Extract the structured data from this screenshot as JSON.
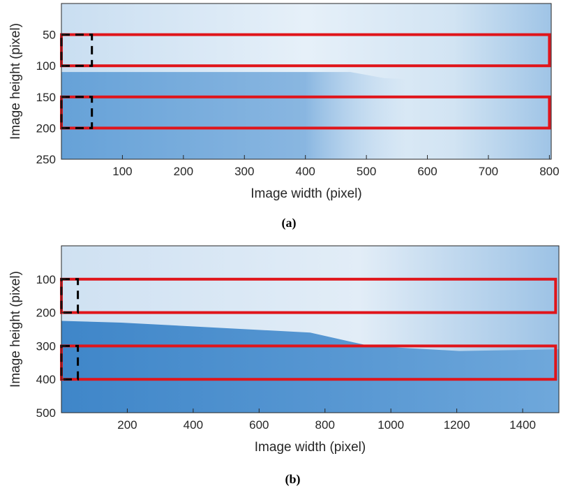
{
  "chart_data": [
    {
      "type": "image",
      "caption": "(a)",
      "x_label": "Image width (pixel)",
      "y_label": "Image height (pixel)",
      "xlim": [
        0,
        803
      ],
      "ylim": [
        0,
        250
      ],
      "y_reversed": true,
      "xticks": [
        100,
        200,
        300,
        400,
        500,
        600,
        700,
        800
      ],
      "yticks": [
        50,
        100,
        150,
        200,
        250
      ],
      "boxes": [
        {
          "color": "#e0151b",
          "dashed": false,
          "x": [
            0,
            800
          ],
          "y": [
            50,
            100
          ]
        },
        {
          "color": "#e0151b",
          "dashed": false,
          "x": [
            0,
            800
          ],
          "y": [
            150,
            200
          ]
        },
        {
          "color": "#000000",
          "dashed": true,
          "x": [
            0,
            50
          ],
          "y": [
            50,
            100
          ]
        },
        {
          "color": "#000000",
          "dashed": true,
          "x": [
            0,
            50
          ],
          "y": [
            150,
            200
          ]
        }
      ]
    },
    {
      "type": "image",
      "caption": "(b)",
      "x_label": "Image width (pixel)",
      "y_label": "Image height (pixel)",
      "xlim": [
        0,
        1510
      ],
      "ylim": [
        0,
        500
      ],
      "y_reversed": true,
      "xticks": [
        200,
        400,
        600,
        800,
        1000,
        1200,
        1400
      ],
      "yticks": [
        100,
        200,
        300,
        400,
        500
      ],
      "boxes": [
        {
          "color": "#e0151b",
          "dashed": false,
          "x": [
            0,
            1500
          ],
          "y": [
            100,
            200
          ]
        },
        {
          "color": "#e0151b",
          "dashed": false,
          "x": [
            0,
            1500
          ],
          "y": [
            300,
            400
          ]
        },
        {
          "color": "#000000",
          "dashed": true,
          "x": [
            0,
            50
          ],
          "y": [
            100,
            200
          ]
        },
        {
          "color": "#000000",
          "dashed": true,
          "x": [
            0,
            50
          ],
          "y": [
            300,
            400
          ]
        }
      ]
    }
  ]
}
